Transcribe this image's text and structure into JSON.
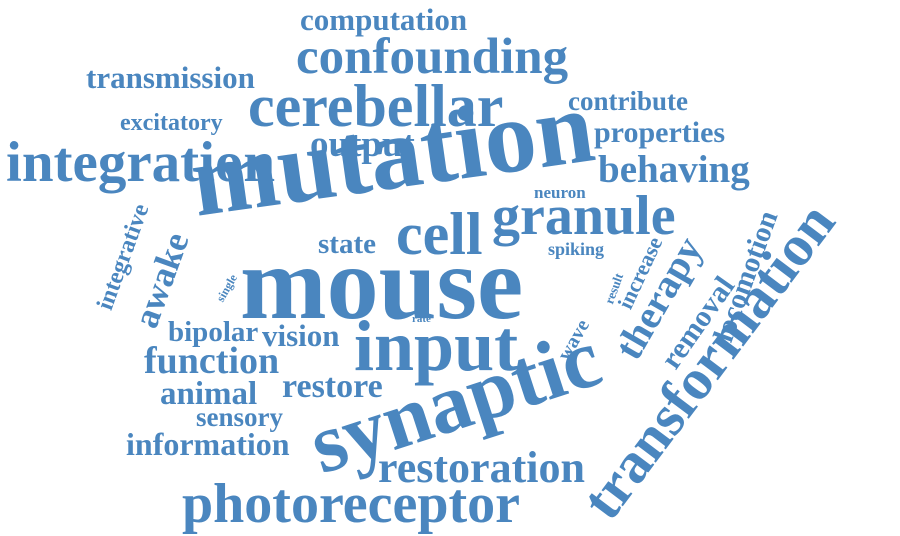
{
  "style": {
    "color": "#4a86bf"
  },
  "words": [
    {
      "text": "computation"
    },
    {
      "text": "confounding"
    },
    {
      "text": "transmission"
    },
    {
      "text": "cerebellar"
    },
    {
      "text": "contribute"
    },
    {
      "text": "excitatory"
    },
    {
      "text": "properties"
    },
    {
      "text": "output"
    },
    {
      "text": "integration"
    },
    {
      "text": "behaving"
    },
    {
      "text": "mutation"
    },
    {
      "text": "neuron"
    },
    {
      "text": "granule"
    },
    {
      "text": "integrative"
    },
    {
      "text": "state"
    },
    {
      "text": "cell"
    },
    {
      "text": "spiking"
    },
    {
      "text": "awake"
    },
    {
      "text": "increase"
    },
    {
      "text": "result"
    },
    {
      "text": "single"
    },
    {
      "text": "mouse"
    },
    {
      "text": "therapy"
    },
    {
      "text": "locomotion"
    },
    {
      "text": "transformation"
    },
    {
      "text": "rate"
    },
    {
      "text": "removal"
    },
    {
      "text": "bipolar"
    },
    {
      "text": "vision"
    },
    {
      "text": "input"
    },
    {
      "text": "wave"
    },
    {
      "text": "function"
    },
    {
      "text": "animal"
    },
    {
      "text": "restore"
    },
    {
      "text": "synaptic"
    },
    {
      "text": "sensory"
    },
    {
      "text": "information"
    },
    {
      "text": "restoration"
    },
    {
      "text": "photoreceptor"
    }
  ]
}
